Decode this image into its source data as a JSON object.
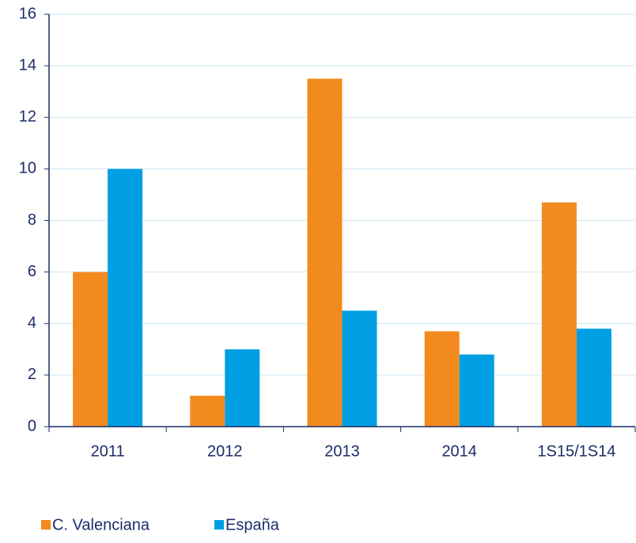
{
  "chart_data": {
    "type": "bar",
    "categories": [
      "2011",
      "2012",
      "2013",
      "2014",
      "1S15/1S14"
    ],
    "series": [
      {
        "name": "C. Valenciana",
        "color": "#f28a1e",
        "values": [
          6.0,
          1.2,
          13.5,
          3.7,
          8.7
        ]
      },
      {
        "name": "España",
        "color": "#009fe3",
        "values": [
          10.0,
          3.0,
          4.5,
          2.8,
          3.8
        ]
      }
    ],
    "ylim": [
      0,
      16
    ],
    "yticks": [
      0,
      2,
      4,
      6,
      8,
      10,
      12,
      14,
      16
    ],
    "grid": true,
    "legend": "bottom"
  }
}
